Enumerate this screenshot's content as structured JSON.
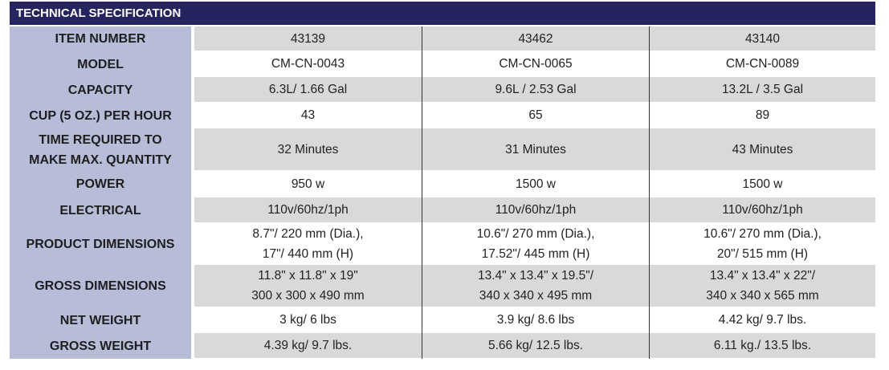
{
  "header": {
    "title": "TECHNICAL SPECIFICATION"
  },
  "table": {
    "rows": [
      [
        "ITEM NUMBER",
        "43139",
        "43462",
        "43140"
      ],
      [
        "MODEL",
        "CM-CN-0043",
        "CM-CN-0065",
        "CM-CN-0089"
      ],
      [
        "CAPACITY",
        "6.3L/ 1.66 Gal",
        "9.6L / 2.53 Gal",
        "13.2L / 3.5 Gal"
      ],
      [
        "CUP (5 OZ.) PER HOUR",
        "43",
        "65",
        "89"
      ],
      [
        "TIME REQUIRED TO\nMAKE MAX. QUANTITY",
        "32 Minutes",
        "31 Minutes",
        "43 Minutes"
      ],
      [
        "POWER",
        "950 w",
        "1500 w",
        "1500 w"
      ],
      [
        "ELECTRICAL",
        "110v/60hz/1ph",
        "110v/60hz/1ph",
        "110v/60hz/1ph"
      ],
      [
        "PRODUCT DIMENSIONS",
        "8.7\"/ 220 mm (Dia.),\n17\"/ 440 mm (H)",
        "10.6\"/ 270 mm (Dia.),\n17.52\"/ 445 mm (H)",
        "10.6\"/ 270 mm (Dia.),\n20\"/ 515 mm (H)"
      ],
      [
        "GROSS DIMENSIONS",
        "11.8\" x 11.8\" x 19\"\n300 x 300 x 490 mm",
        "13.4\" x 13.4\" x 19.5\"/\n340 x 340 x 495 mm",
        "13.4\" x 13.4\" x 22\"/\n340 x 340 x 565 mm"
      ],
      [
        "NET WEIGHT",
        "3 kg/ 6 lbs",
        "3.9 kg/ 8.6 lbs",
        "4.42 kg/ 9.7 lbs."
      ],
      [
        "GROSS WEIGHT",
        "4.39 kg/ 9.7 lbs.",
        "5.66 kg/ 12.5 lbs.",
        "6.11 kg./ 13.5 lbs."
      ]
    ]
  }
}
